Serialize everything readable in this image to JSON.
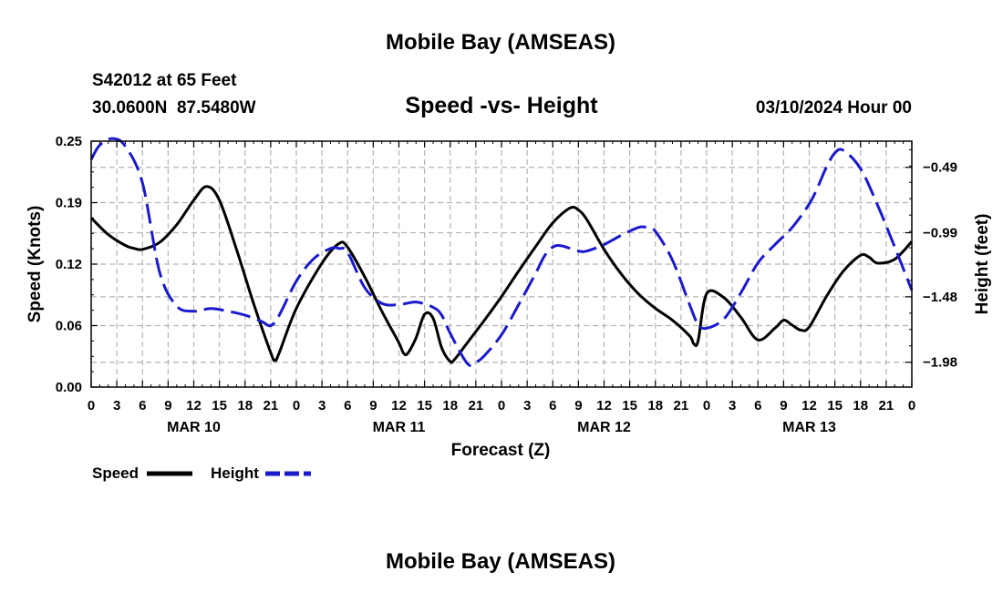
{
  "page": {
    "top_title": "Mobile Bay (AMSEAS)",
    "bottom_title": "Mobile Bay (AMSEAS)",
    "station_line": "S42012 at 65 Feet",
    "coords_line": "30.0600N  87.5480W",
    "run_time": "03/10/2024 Hour 00"
  },
  "colors": {
    "speed": "#000000",
    "height": "#1a1acc",
    "grid": "#b4b4b4"
  },
  "chart_data": {
    "type": "line",
    "title": "Speed -vs- Height",
    "xlabel": "Forecast (Z)",
    "ylabel": "Speed (Knots)",
    "y2label": "Height (feet)",
    "x_range_hours": [
      0,
      96
    ],
    "ylim": [
      0,
      0.25
    ],
    "y2lim": [
      -2.17,
      -0.29
    ],
    "grid": true,
    "legend_placement": "bottom-left",
    "x_ticks": [
      {
        "h": 0,
        "label": "0"
      },
      {
        "h": 3,
        "label": "3"
      },
      {
        "h": 6,
        "label": "6"
      },
      {
        "h": 9,
        "label": "9"
      },
      {
        "h": 12,
        "label": "12"
      },
      {
        "h": 15,
        "label": "15"
      },
      {
        "h": 18,
        "label": "18"
      },
      {
        "h": 21,
        "label": "21"
      },
      {
        "h": 24,
        "label": "0"
      },
      {
        "h": 27,
        "label": "3"
      },
      {
        "h": 30,
        "label": "6"
      },
      {
        "h": 33,
        "label": "9"
      },
      {
        "h": 36,
        "label": "12"
      },
      {
        "h": 39,
        "label": "15"
      },
      {
        "h": 42,
        "label": "18"
      },
      {
        "h": 45,
        "label": "21"
      },
      {
        "h": 48,
        "label": "0"
      },
      {
        "h": 51,
        "label": "3"
      },
      {
        "h": 54,
        "label": "6"
      },
      {
        "h": 57,
        "label": "9"
      },
      {
        "h": 60,
        "label": "12"
      },
      {
        "h": 63,
        "label": "15"
      },
      {
        "h": 66,
        "label": "18"
      },
      {
        "h": 69,
        "label": "21"
      },
      {
        "h": 72,
        "label": "0"
      },
      {
        "h": 75,
        "label": "3"
      },
      {
        "h": 78,
        "label": "6"
      },
      {
        "h": 81,
        "label": "9"
      },
      {
        "h": 84,
        "label": "12"
      },
      {
        "h": 87,
        "label": "15"
      },
      {
        "h": 90,
        "label": "18"
      },
      {
        "h": 93,
        "label": "21"
      },
      {
        "h": 96,
        "label": "0"
      }
    ],
    "day_labels": [
      {
        "h": 12,
        "label": "MAR 10"
      },
      {
        "h": 36,
        "label": "MAR 11"
      },
      {
        "h": 60,
        "label": "MAR 12"
      },
      {
        "h": 84,
        "label": "MAR 13"
      }
    ],
    "y_ticks": [
      {
        "v": 0.0,
        "label": "0.00"
      },
      {
        "v": 0.0625,
        "label": "0.06"
      },
      {
        "v": 0.125,
        "label": "0.12"
      },
      {
        "v": 0.1875,
        "label": "0.19"
      },
      {
        "v": 0.25,
        "label": "0.25"
      }
    ],
    "y2_ticks": [
      {
        "v": -0.49,
        "label": "−0.49"
      },
      {
        "v": -0.99,
        "label": "−0.99"
      },
      {
        "v": -1.48,
        "label": "−1.48"
      },
      {
        "v": -1.98,
        "label": "−1.98"
      }
    ],
    "series": [
      {
        "name": "Speed",
        "axis": "left",
        "style": "solid",
        "x": [
          0,
          2,
          4,
          5,
          6,
          8,
          10,
          12,
          13.5,
          15,
          17,
          19,
          21,
          21.5,
          22,
          24,
          27,
          29,
          30,
          32,
          34,
          36,
          36.5,
          37,
          38,
          39,
          40,
          41,
          42,
          42.5,
          44,
          46,
          48,
          50,
          52,
          54,
          56,
          57,
          58,
          60,
          62,
          64,
          66,
          68,
          70,
          70.5,
          71,
          72,
          74,
          76,
          78,
          80,
          81,
          82,
          83,
          84,
          86,
          88,
          90,
          91,
          92,
          94,
          96
        ],
        "values": [
          0.172,
          0.155,
          0.144,
          0.141,
          0.14,
          0.147,
          0.165,
          0.19,
          0.204,
          0.19,
          0.14,
          0.085,
          0.035,
          0.027,
          0.035,
          0.08,
          0.126,
          0.146,
          0.142,
          0.112,
          0.077,
          0.045,
          0.035,
          0.034,
          0.05,
          0.074,
          0.07,
          0.04,
          0.026,
          0.028,
          0.045,
          0.068,
          0.092,
          0.118,
          0.143,
          0.167,
          0.182,
          0.18,
          0.17,
          0.14,
          0.115,
          0.095,
          0.08,
          0.068,
          0.052,
          0.044,
          0.047,
          0.095,
          0.091,
          0.071,
          0.048,
          0.06,
          0.068,
          0.063,
          0.058,
          0.061,
          0.092,
          0.118,
          0.134,
          0.132,
          0.126,
          0.13,
          0.148
        ]
      },
      {
        "name": "Height",
        "axis": "right",
        "style": "dashed",
        "x": [
          0,
          1,
          2.5,
          4,
          6,
          8,
          10,
          12,
          14,
          16,
          18,
          20,
          21,
          22,
          24,
          26,
          28,
          29,
          30,
          32,
          34,
          36,
          38,
          40,
          41,
          42,
          44,
          45,
          46,
          48,
          50,
          52,
          53,
          54,
          55,
          57,
          58,
          60,
          62,
          64,
          65,
          66,
          68,
          70,
          71,
          72,
          74,
          76,
          78,
          80,
          82,
          84,
          85,
          86,
          87,
          88,
          90,
          92,
          94,
          96
        ],
        "values": [
          -0.43,
          -0.32,
          -0.27,
          -0.33,
          -0.61,
          -1.29,
          -1.55,
          -1.59,
          -1.57,
          -1.59,
          -1.62,
          -1.67,
          -1.7,
          -1.62,
          -1.36,
          -1.19,
          -1.11,
          -1.11,
          -1.14,
          -1.41,
          -1.53,
          -1.54,
          -1.52,
          -1.56,
          -1.62,
          -1.76,
          -1.99,
          -1.98,
          -1.93,
          -1.77,
          -1.54,
          -1.3,
          -1.17,
          -1.1,
          -1.09,
          -1.13,
          -1.13,
          -1.08,
          -1.01,
          -0.95,
          -0.95,
          -0.98,
          -1.2,
          -1.54,
          -1.69,
          -1.72,
          -1.65,
          -1.45,
          -1.22,
          -1.08,
          -0.95,
          -0.77,
          -0.64,
          -0.49,
          -0.38,
          -0.36,
          -0.5,
          -0.78,
          -1.1,
          -1.43
        ]
      }
    ]
  }
}
